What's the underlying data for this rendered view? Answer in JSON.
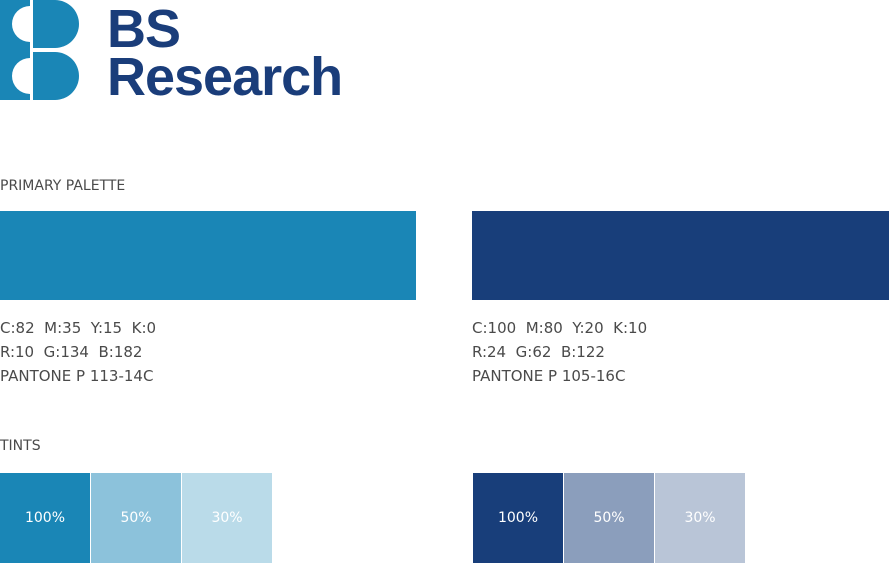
{
  "logo": {
    "line1": "BS",
    "line2": "Research"
  },
  "primary_palette": {
    "heading": "PRIMARY PALETTE",
    "colors": [
      {
        "cmyk": "C:82  M:35  Y:15  K:0",
        "rgb": "R:10  G:134  B:182",
        "pantone": "PANTONE P 113-14C"
      },
      {
        "cmyk": "C:100  M:80  Y:20  K:10",
        "rgb": "R:24  G:62  B:122",
        "pantone": "PANTONE P 105-16C"
      }
    ]
  },
  "tints": {
    "heading": "TINTS",
    "groups": [
      [
        "100%",
        "50%",
        "30%"
      ],
      [
        "100%",
        "50%",
        "30%"
      ]
    ]
  }
}
